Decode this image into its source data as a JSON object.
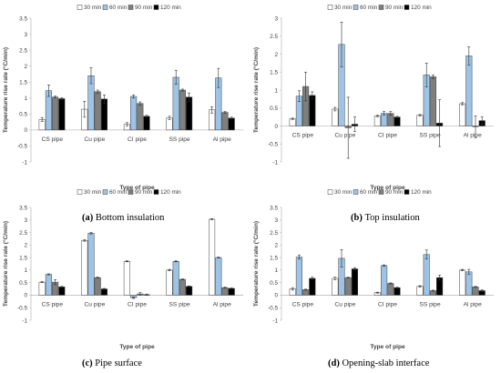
{
  "figure": {
    "panels": [
      {
        "caption_letter": "(a)",
        "caption_text": " Bottom insulation"
      },
      {
        "caption_letter": "(b)",
        "caption_text": " Top insulation"
      },
      {
        "caption_letter": "(c)",
        "caption_text": " Pipe surface"
      },
      {
        "caption_letter": "(d)",
        "caption_text": " Opening-slab interface"
      }
    ]
  },
  "colors": {
    "30 min": "#ffffff",
    "60 min": "#9dc3e6",
    "90 min": "#7f7f7f",
    "120 min": "#000000",
    "bar_stroke": "#404040",
    "axis": "#bfbfbf",
    "text": "#404040"
  },
  "chart_data": [
    {
      "type": "bar",
      "categories": [
        "CS pipe",
        "Cu pipe",
        "CI pipe",
        "SS pipe",
        "Al pipe"
      ],
      "xlabel": "Type of pipe",
      "ylabel": "Temperature rise rate (°C/min)",
      "ylim": [
        -1,
        3.5
      ],
      "yticks": [
        "-1",
        "-0.5",
        "0",
        "0.5",
        "1",
        "1.5",
        "2",
        "2.5",
        "3",
        "3.5"
      ],
      "legend": "top",
      "series": [
        {
          "name": "30 min",
          "values": [
            0.33,
            0.65,
            0.18,
            0.38,
            0.63
          ],
          "errors": [
            0.06,
            0.25,
            0.05,
            0.05,
            0.1
          ]
        },
        {
          "name": "60 min",
          "values": [
            1.23,
            1.7,
            1.05,
            1.65,
            1.63
          ],
          "errors": [
            0.18,
            0.25,
            0.05,
            0.22,
            0.3
          ]
        },
        {
          "name": "90 min",
          "values": [
            1.03,
            1.2,
            0.83,
            1.25,
            0.55
          ],
          "errors": [
            0.03,
            0.05,
            0.05,
            0.03,
            0.03
          ]
        },
        {
          "name": "120 min",
          "values": [
            0.98,
            0.97,
            0.43,
            1.03,
            0.37
          ],
          "errors": [
            0.03,
            0.13,
            0.03,
            0.13,
            0.03
          ]
        }
      ]
    },
    {
      "type": "bar",
      "categories": [
        "CS pipe",
        "Cu pipe",
        "CI pipe",
        "SS pipe",
        "Al pipe"
      ],
      "xlabel": "Type of pipe",
      "ylabel": "Temperature rise rate (°C/min)",
      "ylim": [
        -1,
        3
      ],
      "yticks": [
        "-1",
        "-0.5",
        "0",
        "0.5",
        "1",
        "1.5",
        "2",
        "2.5",
        "3"
      ],
      "legend": "top",
      "series": [
        {
          "name": "30 min",
          "values": [
            0.2,
            0.47,
            0.28,
            0.3,
            0.62
          ],
          "errors": [
            0.02,
            0.05,
            0.02,
            0.02,
            0.03
          ]
        },
        {
          "name": "60 min",
          "values": [
            0.83,
            2.27,
            0.35,
            1.42,
            1.95
          ],
          "errors": [
            0.15,
            0.62,
            0.05,
            0.33,
            0.25
          ]
        },
        {
          "name": "90 min",
          "values": [
            1.1,
            -0.05,
            0.35,
            1.37,
            -0.02
          ],
          "errors": [
            0.4,
            0.85,
            0.05,
            0.05,
            0.3
          ]
        },
        {
          "name": "120 min",
          "values": [
            0.85,
            0.05,
            0.25,
            0.08,
            0.15
          ],
          "errors": [
            0.1,
            0.2,
            0.02,
            0.65,
            0.1
          ]
        }
      ]
    },
    {
      "type": "bar",
      "categories": [
        "CS pipe",
        "Cu pipe",
        "CI pipe",
        "SS pipe",
        "Al pipe"
      ],
      "xlabel": "Type of pipe",
      "ylabel": "Temperature rise rate (°C/min)",
      "ylim": [
        -1,
        3.5
      ],
      "yticks": [
        "-1",
        "-0.5",
        "0",
        "0.5",
        "1",
        "1.5",
        "2",
        "2.5",
        "3",
        "3.5"
      ],
      "legend": "top",
      "series": [
        {
          "name": "30 min",
          "values": [
            0.52,
            2.18,
            1.35,
            1.0,
            3.03
          ],
          "errors": [
            0.02,
            0.03,
            0.02,
            0.03,
            0.02
          ]
        },
        {
          "name": "60 min",
          "values": [
            0.83,
            2.47,
            -0.1,
            1.35,
            1.5
          ],
          "errors": [
            0.02,
            0.03,
            0.03,
            0.02,
            0.02
          ]
        },
        {
          "name": "90 min",
          "values": [
            0.52,
            0.7,
            0.05,
            0.63,
            0.3
          ],
          "errors": [
            0.1,
            0.02,
            0.05,
            0.02,
            0.02
          ]
        },
        {
          "name": "120 min",
          "values": [
            0.33,
            0.25,
            0.02,
            0.35,
            0.27
          ],
          "errors": [
            0.02,
            0.02,
            0.02,
            0.02,
            0.02
          ]
        }
      ]
    },
    {
      "type": "bar",
      "categories": [
        "CS pipe",
        "Cu pipe",
        "CI pipe",
        "SS pipe",
        "Al pipe"
      ],
      "xlabel": "Type of pipe",
      "ylabel": "Temperature rise rate (°C/min)",
      "ylim": [
        -1,
        3.5
      ],
      "yticks": [
        "-1",
        "-0.5",
        "0",
        "0.5",
        "1",
        "1.5",
        "2",
        "2.5",
        "3",
        "3.5"
      ],
      "legend": "top",
      "series": [
        {
          "name": "30 min",
          "values": [
            0.25,
            0.67,
            0.1,
            0.35,
            1.0
          ],
          "errors": [
            0.05,
            0.05,
            0.02,
            0.03,
            0.03
          ]
        },
        {
          "name": "60 min",
          "values": [
            1.52,
            1.47,
            1.18,
            1.62,
            0.93
          ],
          "errors": [
            0.08,
            0.35,
            0.03,
            0.18,
            0.1
          ]
        },
        {
          "name": "90 min",
          "values": [
            0.22,
            0.7,
            0.47,
            0.18,
            0.33
          ],
          "errors": [
            0.02,
            0.02,
            0.02,
            0.02,
            0.02
          ]
        },
        {
          "name": "120 min",
          "values": [
            0.67,
            1.05,
            0.3,
            0.7,
            0.18
          ],
          "errors": [
            0.05,
            0.05,
            0.02,
            0.1,
            0.03
          ]
        }
      ]
    }
  ]
}
